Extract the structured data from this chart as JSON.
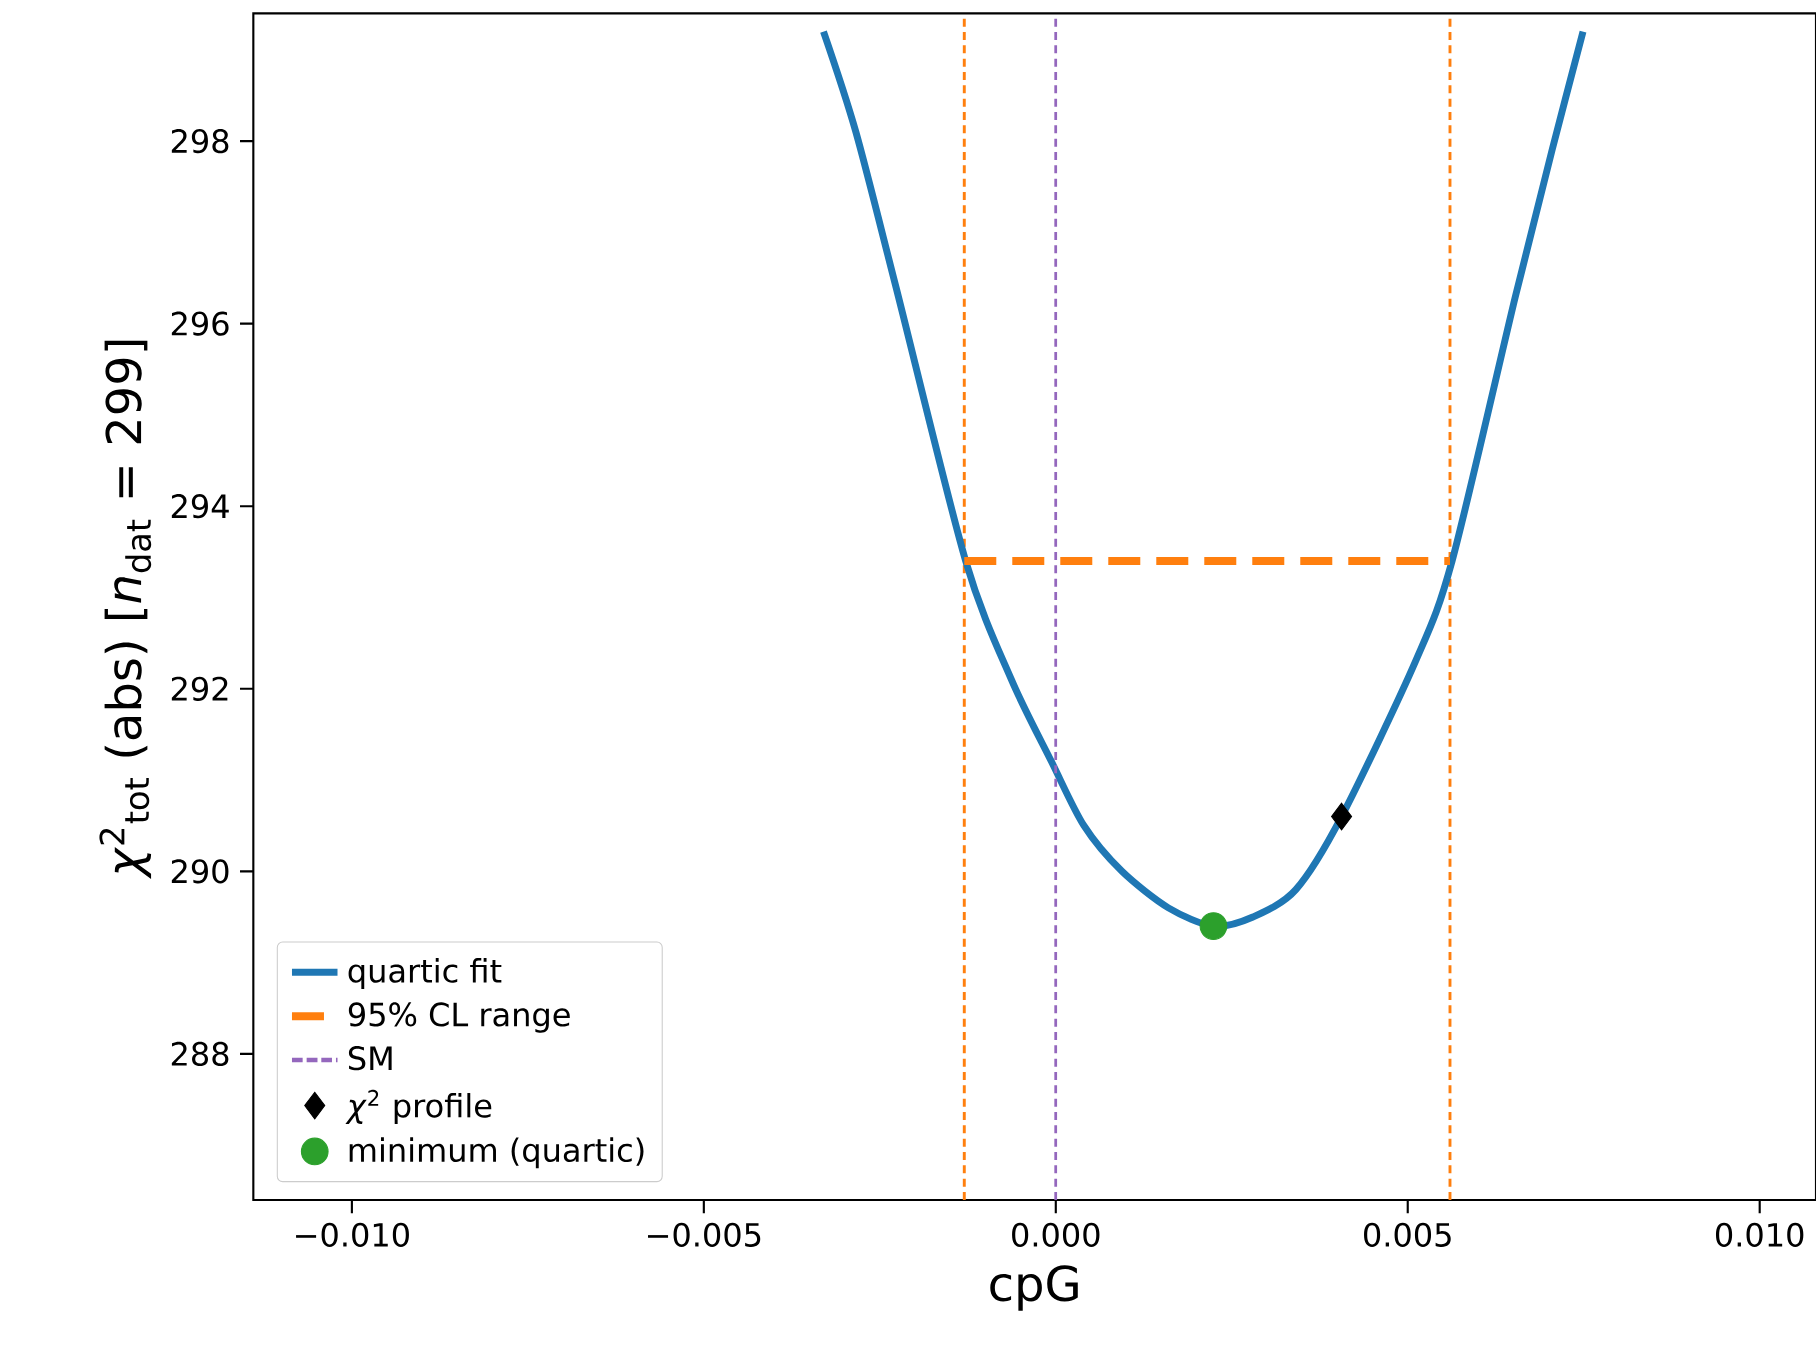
{
  "chart_data": {
    "type": "line",
    "xlabel": "cpG",
    "ylabel": "*χ*$^{2}$$_{tot}$ (abs)  [*n*$_{dat}$ = 299]",
    "xlim": [
      -0.0114,
      0.0108
    ],
    "ylim": [
      286.4,
      299.4
    ],
    "xticks": [
      {
        "value": -0.01,
        "label": "−0.010"
      },
      {
        "value": -0.005,
        "label": "−0.005"
      },
      {
        "value": 0,
        "label": "0.000"
      },
      {
        "value": 0.005,
        "label": "0.005"
      },
      {
        "value": 0.01,
        "label": "0.010"
      }
    ],
    "yticks": [
      288,
      290,
      292,
      294,
      296,
      298
    ],
    "legend": "bottom left",
    "series": [
      {
        "name": "quartic fit",
        "color": "#1f77b4",
        "line_style": "solid",
        "x": [
          -0.0033,
          -0.00284,
          -0.00227,
          -0.00128,
          -0.00063,
          -6e-05,
          0.0004,
          0.00094,
          0.0016,
          0.00224,
          0.0028,
          0.00341,
          0.00406,
          0.00511,
          0.00563,
          0.00653,
          0.00705,
          0.00749
        ],
        "values": [
          299.2,
          298.1,
          296.4,
          293.4,
          292.1,
          291.2,
          290.5,
          290.0,
          289.6,
          289.4,
          289.5,
          289.8,
          290.6,
          292.3,
          293.4,
          296.3,
          297.9,
          299.2
        ]
      },
      {
        "name": "95% CL range",
        "color": "#ff7f0e",
        "line_style": "dashed",
        "x": [
          -0.0013,
          0.0056
        ],
        "values": [
          293.4,
          293.4
        ]
      },
      {
        "name": "SM",
        "type": "line",
        "color": "#9467bd",
        "line_style": "dashed",
        "x": [
          0,
          0
        ],
        "values": [
          286.4,
          299.4
        ]
      },
      {
        "name": "*χ*$^{2}$ profile",
        "type": "scatter",
        "marker": "diamond",
        "color": "#000000",
        "x": [
          0.00406
        ],
        "values": [
          290.6
        ]
      },
      {
        "name": "minimum (quartic)",
        "type": "scatter",
        "marker": "circle",
        "color": "#2ca02c",
        "x": [
          0.00224
        ],
        "values": [
          289.4
        ]
      }
    ],
    "ref_lines": [
      {
        "axis": "x",
        "value": -0.0013,
        "color": "#ff7f0e",
        "line_style": "dashed"
      },
      {
        "axis": "x",
        "value": 0.0056,
        "color": "#ff7f0e",
        "line_style": "dashed"
      }
    ]
  }
}
